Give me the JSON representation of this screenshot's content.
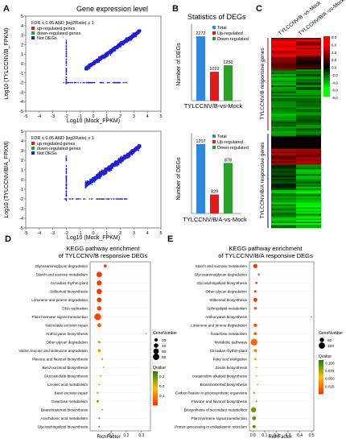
{
  "panels": {
    "A": {
      "letter": "A",
      "title": "Gene expression level"
    },
    "B": {
      "letter": "B",
      "title": "Statistics of DEGs"
    },
    "C": {
      "letter": "C"
    },
    "D": {
      "letter": "D"
    },
    "E": {
      "letter": "E"
    }
  },
  "colors": {
    "total": "#2e86de",
    "up": "#e31a1c",
    "down": "#2ca02c",
    "notdeg": "#1f1fd6",
    "heat_high": "#ff0000",
    "heat_mid": "#000000",
    "heat_low": "#00ff00",
    "q_low": "#ff3300",
    "q_mid": "#ffc000",
    "q_high": "#1a8a00"
  },
  "chart_data": [
    {
      "id": "A-top",
      "type": "scatter",
      "xlabel": "Log10 (Mock_FPKM)",
      "ylabel": "Log10 (TYLCCNV/B_FPKM)",
      "xticks": [
        "-5",
        "-4",
        "-3",
        "-2",
        "-1",
        "0",
        "1",
        "2",
        "3",
        "4",
        "5"
      ],
      "yticks": [
        "-5",
        "-4",
        "-3",
        "-2",
        "-1",
        "0",
        "1",
        "2",
        "3",
        "4",
        "5"
      ],
      "xlim": [
        -5,
        5
      ],
      "ylim": [
        -5,
        5
      ],
      "legend_title": "FDR ≤ 0.05 AND |log2Ratio| ≥ 1",
      "legend": [
        "up-regulated genes",
        "down-regulated genes",
        "Not DEGs"
      ],
      "legend_position": "top-left"
    },
    {
      "id": "A-bottom",
      "type": "scatter",
      "xlabel": "Log10 (Mock_FPKM)",
      "ylabel": "Log10 (TYLCCNV/B/A_FPKM)",
      "xticks": [
        "-5",
        "-4",
        "-3",
        "-2",
        "-1",
        "0",
        "1",
        "2",
        "3",
        "4",
        "5"
      ],
      "yticks": [
        "-5",
        "-4",
        "-3",
        "-2",
        "-1",
        "0",
        "1",
        "2",
        "3",
        "4",
        "5"
      ],
      "xlim": [
        -5,
        5
      ],
      "ylim": [
        -5,
        5
      ],
      "legend_title": "FDR ≤ 0.05 AND |log2Ratio| ≥ 1",
      "legend": [
        "up-regulated genes",
        "down-regulated genes",
        "Not DEGs"
      ],
      "legend_position": "top-left"
    },
    {
      "id": "B-top",
      "type": "bar",
      "categories": [
        "Total",
        "Up-regulated",
        "Down-regulated"
      ],
      "values": [
        2272,
        1022,
        1250
      ],
      "ylabel": "Number of DEGs",
      "xlabel": "TYLCCNV/B-vs-Mock",
      "legend_position": "top-right"
    },
    {
      "id": "B-bottom",
      "type": "bar",
      "categories": [
        "Total",
        "Up-regulated",
        "Down-regulated"
      ],
      "values": [
        1207,
        329,
        878
      ],
      "ylabel": "Number of DEGs",
      "xlabel": "TYLCCNV/B/A-vs-Mock",
      "legend_position": "top-right"
    },
    {
      "id": "C",
      "type": "heatmap",
      "columns": [
        "TYLCCNV/B -vs-Mock",
        "TYLCCNV/B/A -vs-Mock"
      ],
      "row_groups": [
        "TYLCCNV/B responsive genes",
        "TYLCCNV/B/A responsive genes"
      ],
      "scale_labels": [
        "8.0",
        "6.0",
        "4.0",
        "2.0",
        "0.0",
        "-2.0",
        "-4.0",
        "-6.0",
        "-8.0"
      ]
    },
    {
      "id": "D",
      "type": "scatter",
      "title": "KEGG pathway enrichment\nof TYLCCNV/B responsive DEGs",
      "xlabel": "RichFactor",
      "xticks": [
        {
          "v": 0.1,
          "t": "0.1"
        },
        {
          "v": 0.2,
          "t": "0.2"
        },
        {
          "v": 0.3,
          "t": "0.3"
        }
      ],
      "xlim": [
        -0.04,
        0.36
      ],
      "size_legend_title": "GeneNumber",
      "size_legend": [
        {
          "v": 20,
          "t": "20"
        },
        {
          "v": 40,
          "t": "40"
        },
        {
          "v": 60,
          "t": "60"
        },
        {
          "v": 80,
          "t": "80"
        }
      ],
      "q_legend_title": "Qvalue",
      "q_ticks": [
        {
          "v": 0.3,
          "t": "0.3"
        },
        {
          "v": 0.2,
          "t": "0.2"
        },
        {
          "v": 0.1,
          "t": "0.1"
        }
      ],
      "q_range": [
        0,
        0.35
      ],
      "points": [
        {
          "term": "Glycosaminoglycan degradation",
          "x": 0.06,
          "q": 0.0,
          "n": 18
        },
        {
          "term": "Starch and sucrose metabolism",
          "x": 0.02,
          "q": 0.0,
          "n": 60
        },
        {
          "term": "Circadian rhythm-plant",
          "x": 0.02,
          "q": 0.0,
          "n": 50
        },
        {
          "term": "Stilbenoid biosynthesis",
          "x": 0.02,
          "q": 0.0,
          "n": 55
        },
        {
          "term": "Limonene and pinene degradation",
          "x": 0.02,
          "q": 0.0,
          "n": 45
        },
        {
          "term": "DNA replication",
          "x": 0.02,
          "q": 0.02,
          "n": 40
        },
        {
          "term": "Plant hormone signal transduction",
          "x": 0.01,
          "q": 0.02,
          "n": 90
        },
        {
          "term": "Nucleotide excision repair",
          "x": 0.02,
          "q": 0.05,
          "n": 30
        },
        {
          "term": "Anthocyanin biosynthesis",
          "x": 0.33,
          "q": 0.08,
          "n": 3
        },
        {
          "term": "Other glycan degradation",
          "x": 0.02,
          "q": 0.1,
          "n": 12
        },
        {
          "term": "Valine, leucine and isoleucine degradation",
          "x": 0.02,
          "q": 0.12,
          "n": 18
        },
        {
          "term": "Flavone and flavonol biosynthesis",
          "x": 0.04,
          "q": 0.14,
          "n": 8
        },
        {
          "term": "Benzoxazinoid biosynthesis",
          "x": 0.05,
          "q": 0.15,
          "n": 5
        },
        {
          "term": "Glucosinolate biosynthesis",
          "x": 0.03,
          "q": 0.17,
          "n": 9
        },
        {
          "term": "Linoleic acid metabolism",
          "x": 0.02,
          "q": 0.2,
          "n": 7
        },
        {
          "term": "Base excision repair",
          "x": 0.01,
          "q": 0.22,
          "n": 8
        },
        {
          "term": "Galactose metabolism",
          "x": 0.01,
          "q": 0.27,
          "n": 12
        },
        {
          "term": "Brassinosteroid biosynthesis",
          "x": 0.04,
          "q": 0.3,
          "n": 4
        },
        {
          "term": "Arachidonic acid metabolism",
          "x": 0.02,
          "q": 0.32,
          "n": 5
        },
        {
          "term": "Glycosphingolipid biosynthesis",
          "x": 0.02,
          "q": 0.33,
          "n": 4
        }
      ]
    },
    {
      "id": "E",
      "type": "scatter",
      "title": "KEGG pathway enrichment\nof TYLCCNV/B/A responsive DEGs",
      "xlabel": "RichFactor",
      "xticks": [
        {
          "v": 0,
          "t": "0.0"
        },
        {
          "v": 0.1,
          "t": "0.1"
        },
        {
          "v": 0.2,
          "t": "0.2"
        },
        {
          "v": 0.3,
          "t": "0.3"
        },
        {
          "v": 0.4,
          "t": "0.4"
        },
        {
          "v": 0.5,
          "t": "0.5"
        }
      ],
      "xlim": [
        -0.03,
        0.52
      ],
      "size_legend_title": "GeneNumber",
      "size_legend": [
        {
          "v": 50,
          "t": "50"
        },
        {
          "v": 100,
          "t": "100"
        }
      ],
      "q_legend_title": "Qvalue",
      "q_ticks": [
        {
          "v": 0.1,
          "t": "0.100"
        },
        {
          "v": 0.075,
          "t": "0.075"
        },
        {
          "v": 0.05,
          "t": "0.050"
        },
        {
          "v": 0.025,
          "t": "0.025"
        }
      ],
      "q_range": [
        0,
        0.11
      ],
      "points": [
        {
          "term": "Starch and sucrose metabolism",
          "x": 0.02,
          "q": 0.0,
          "n": 45
        },
        {
          "term": "Glycosaminoglycan degradation",
          "x": 0.05,
          "q": 0.0,
          "n": 10
        },
        {
          "term": "Glycosphingolipid biosynthesis",
          "x": 0.03,
          "q": 0.0,
          "n": 12
        },
        {
          "term": "Other glycan degradation",
          "x": 0.02,
          "q": 0.0,
          "n": 15
        },
        {
          "term": "Stilbenoid biosynthesis",
          "x": 0.02,
          "q": 0.0,
          "n": 40
        },
        {
          "term": "Sphingolipid metabolism",
          "x": 0.02,
          "q": 0.01,
          "n": 20
        },
        {
          "term": "Anthocyanin biosynthesis",
          "x": 0.5,
          "q": 0.01,
          "n": 2
        },
        {
          "term": "Limonene and pinene degradation",
          "x": 0.02,
          "q": 0.01,
          "n": 30
        },
        {
          "term": "Galactose metabolism",
          "x": 0.02,
          "q": 0.015,
          "n": 25
        },
        {
          "term": "Metabolic pathways",
          "x": 0.01,
          "q": 0.02,
          "n": 120
        },
        {
          "term": "Circadian rhythm-plant",
          "x": 0.02,
          "q": 0.03,
          "n": 25
        },
        {
          "term": "Fatty acid elongation",
          "x": 0.02,
          "q": 0.04,
          "n": 12
        },
        {
          "term": "Zeatin biosynthesis",
          "x": 0.03,
          "q": 0.05,
          "n": 8
        },
        {
          "term": "Isoquinoline alkaloid biosynthesis",
          "x": 0.03,
          "q": 0.06,
          "n": 8
        },
        {
          "term": "Brassinosteroid biosynthesis",
          "x": 0.04,
          "q": 0.07,
          "n": 6
        },
        {
          "term": "Carbon fixation in photosynthetic organisms",
          "x": 0.01,
          "q": 0.08,
          "n": 10
        },
        {
          "term": "Flavone and flavonol biosynthesis",
          "x": 0.03,
          "q": 0.085,
          "n": 6
        },
        {
          "term": "Biosynthesis of secondary metabolites",
          "x": 0.005,
          "q": 0.09,
          "n": 70
        },
        {
          "term": "Plant hormone signal transduction",
          "x": 0.01,
          "q": 0.095,
          "n": 40
        },
        {
          "term": "Protein processing in endoplasmic reticulum",
          "x": 0.01,
          "q": 0.1,
          "n": 25
        }
      ]
    }
  ]
}
